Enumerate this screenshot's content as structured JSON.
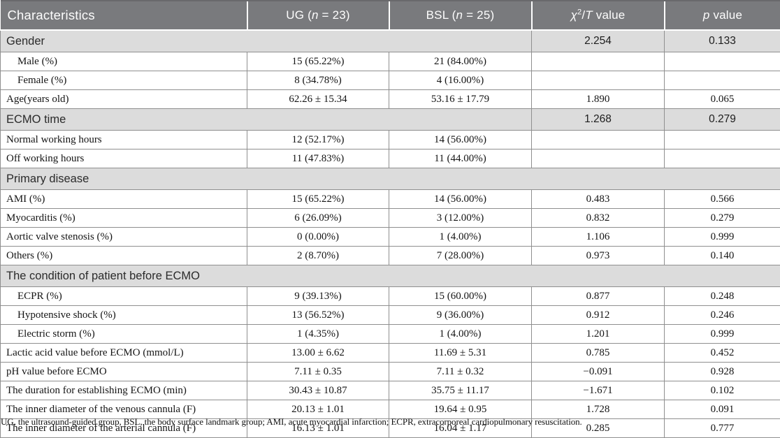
{
  "colors": {
    "header_bg": "#797a7d",
    "header_text": "#fdfdfd",
    "section_bg": "#dcdcdc",
    "border": "#8f8f8f",
    "body_text": "#141414"
  },
  "header": {
    "characteristics": "Characteristics",
    "ug": {
      "pre": "UG (",
      "it": "n",
      "post": " = 23)"
    },
    "bsl": {
      "pre": "BSL (",
      "it": "n",
      "post": " = 25)"
    },
    "chi": {
      "chi": "χ",
      "sup": "2",
      "slash": "/",
      "t": "T",
      "rest": " value"
    },
    "p": {
      "it": "p",
      "rest": " value"
    }
  },
  "rows": [
    {
      "type": "section",
      "label": "Gender",
      "chi": "2.254",
      "p": "0.133"
    },
    {
      "type": "data",
      "label": "Male (%)",
      "indent": true,
      "ug": "15 (65.22%)",
      "bsl": "21 (84.00%)",
      "chi": "",
      "p": ""
    },
    {
      "type": "data",
      "label": "Female (%)",
      "indent": true,
      "ug": "8 (34.78%)",
      "bsl": "4 (16.00%)",
      "chi": "",
      "p": ""
    },
    {
      "type": "data",
      "label": "Age(years old)",
      "indent": false,
      "ug": "62.26 ± 15.34",
      "bsl": "53.16 ± 17.79",
      "chi": "1.890",
      "p": "0.065"
    },
    {
      "type": "section",
      "label": "ECMO time",
      "chi": "1.268",
      "p": "0.279"
    },
    {
      "type": "data",
      "label": "Normal working hours",
      "indent": false,
      "ug": "12 (52.17%)",
      "bsl": "14 (56.00%)",
      "chi": "",
      "p": ""
    },
    {
      "type": "data",
      "label": "Off working hours",
      "indent": false,
      "ug": "11 (47.83%)",
      "bsl": "11 (44.00%)",
      "chi": "",
      "p": ""
    },
    {
      "type": "section_full",
      "label": "Primary disease"
    },
    {
      "type": "data",
      "label": "AMI (%)",
      "indent": false,
      "ug": "15 (65.22%)",
      "bsl": "14 (56.00%)",
      "chi": "0.483",
      "p": "0.566"
    },
    {
      "type": "data",
      "label": "Myocarditis (%)",
      "indent": false,
      "ug": "6 (26.09%)",
      "bsl": "3 (12.00%)",
      "chi": "0.832",
      "p": "0.279"
    },
    {
      "type": "data",
      "label": "Aortic valve stenosis (%)",
      "indent": false,
      "ug": "0 (0.00%)",
      "bsl": "1 (4.00%)",
      "chi": "1.106",
      "p": "0.999"
    },
    {
      "type": "data",
      "label": "Others (%)",
      "indent": false,
      "ug": "2 (8.70%)",
      "bsl": "7 (28.00%)",
      "chi": "0.973",
      "p": "0.140"
    },
    {
      "type": "section_full",
      "label": "The condition of patient before ECMO"
    },
    {
      "type": "data",
      "label": "ECPR (%)",
      "indent": true,
      "ug": "9 (39.13%)",
      "bsl": "15 (60.00%)",
      "chi": "0.877",
      "p": "0.248"
    },
    {
      "type": "data",
      "label": "Hypotensive shock (%)",
      "indent": true,
      "ug": "13 (56.52%)",
      "bsl": "9 (36.00%)",
      "chi": "0.912",
      "p": "0.246"
    },
    {
      "type": "data",
      "label": "Electric storm (%)",
      "indent": true,
      "ug": "1 (4.35%)",
      "bsl": "1 (4.00%)",
      "chi": "1.201",
      "p": "0.999"
    },
    {
      "type": "data",
      "label": "Lactic acid value before ECMO (mmol/L)",
      "indent": false,
      "ug": "13.00 ± 6.62",
      "bsl": "11.69 ± 5.31",
      "chi": "0.785",
      "p": "0.452"
    },
    {
      "type": "data",
      "label": "pH value before ECMO",
      "indent": false,
      "ug": "7.11 ± 0.35",
      "bsl": "7.11 ± 0.32",
      "chi": "−0.091",
      "p": "0.928"
    },
    {
      "type": "data",
      "label": "The duration for establishing ECMO (min)",
      "indent": false,
      "ug": "30.43 ± 10.87",
      "bsl": "35.75 ± 11.17",
      "chi": "−1.671",
      "p": "0.102"
    },
    {
      "type": "data",
      "label": "The inner diameter of the venous cannula (F)",
      "indent": false,
      "ug": "20.13 ± 1.01",
      "bsl": "19.64 ± 0.95",
      "chi": "1.728",
      "p": "0.091"
    },
    {
      "type": "data",
      "label": "The inner diameter of the arterial cannula (F)",
      "indent": false,
      "ug": "16.13 ± 1.01",
      "bsl": "16.04 ± 1.17",
      "chi": "0.285",
      "p": "0.777"
    }
  ],
  "footnote": "UG, the ultrasound-guided group, BSL, the body surface landmark group; AMI, acute myocardial infarction; ECPR, extracorporeal cardiopulmonary resuscitation."
}
